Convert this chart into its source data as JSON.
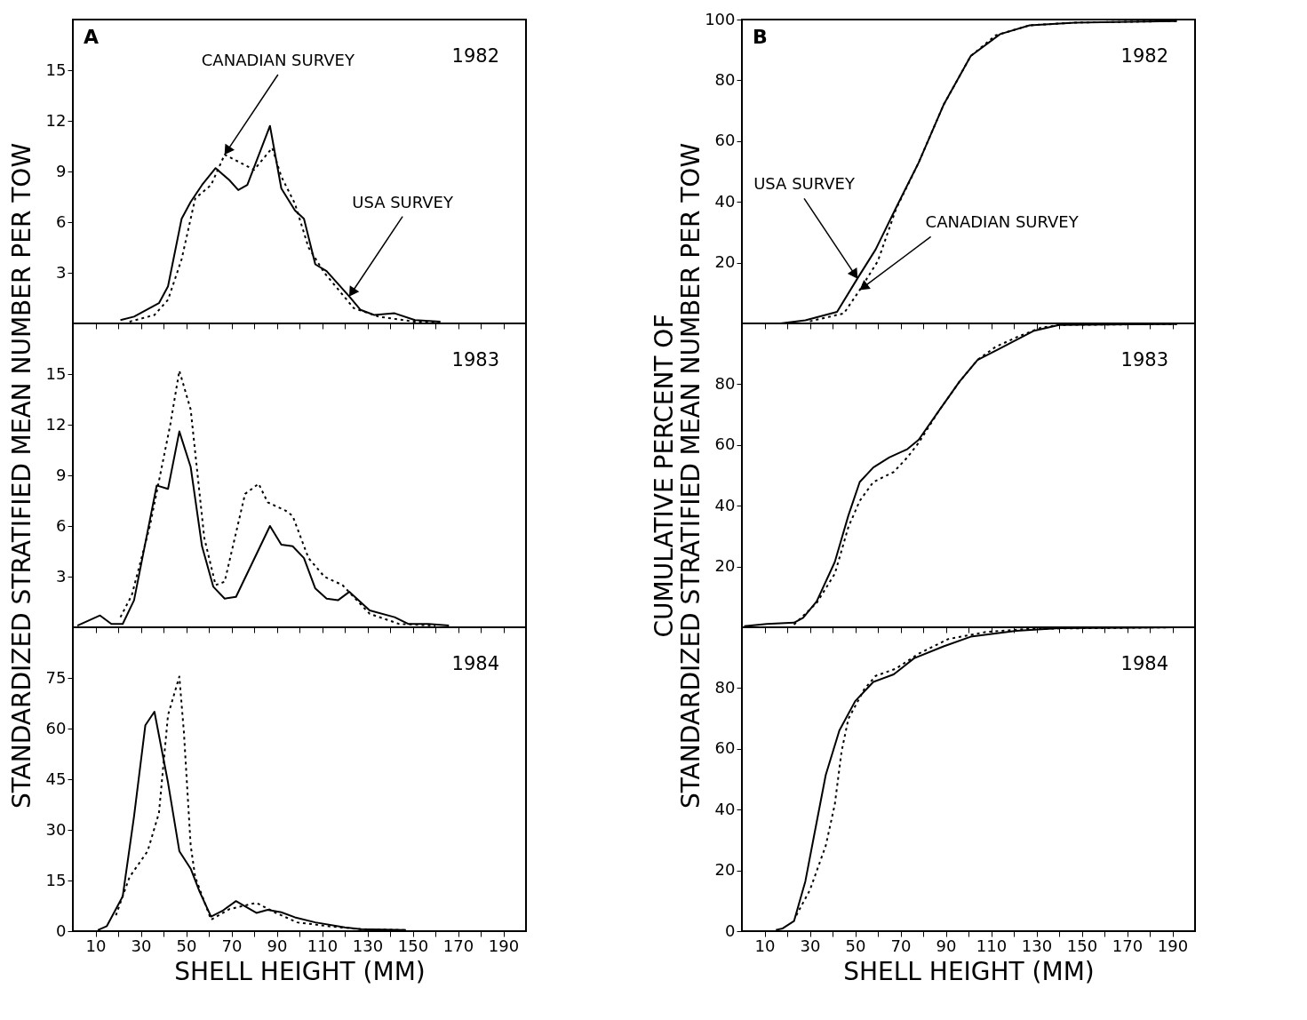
{
  "chart_data": [
    {
      "type": "line",
      "xlim": [
        0,
        200
      ],
      "ylim": [
        0,
        18
      ],
      "yticks": [
        3,
        6,
        9,
        12,
        15
      ],
      "tick_labels": "y",
      "grid": false,
      "xticks": [
        10,
        {
          "value": 20,
          "label": null
        },
        30,
        {
          "value": 40,
          "label": null
        },
        50,
        {
          "value": 60,
          "label": null
        },
        70,
        {
          "value": 80,
          "label": null
        },
        90,
        {
          "value": 100,
          "label": null
        },
        110,
        {
          "value": 120,
          "label": null
        },
        130,
        {
          "value": 140,
          "label": null
        },
        150,
        {
          "value": 160,
          "label": null
        },
        170,
        {
          "value": 180,
          "label": null
        },
        190
      ],
      "series": [
        {
          "color": "#000000",
          "line_style": "solid",
          "x": [
            21,
            27,
            38,
            42,
            48,
            52,
            57,
            63,
            69,
            73,
            77,
            87,
            92,
            98,
            102,
            107,
            112,
            122,
            127,
            133,
            142,
            151,
            162
          ],
          "values": [
            0.2,
            0.4,
            1.2,
            2.2,
            6.2,
            7.2,
            8.2,
            9.2,
            8.5,
            7.9,
            8.2,
            11.7,
            8.0,
            6.7,
            6.2,
            3.5,
            3.1,
            1.6,
            0.8,
            0.5,
            0.6,
            0.2,
            0.1
          ]
        },
        {
          "color": "#000000",
          "line_style": "dotted",
          "x": [
            25,
            36,
            42,
            48,
            54,
            61,
            67,
            80,
            88,
            92,
            98,
            104,
            111,
            124,
            135,
            151,
            163
          ],
          "values": [
            0.1,
            0.5,
            1.4,
            3.8,
            7.4,
            8.2,
            10.0,
            9.1,
            10.4,
            8.7,
            7.1,
            4.5,
            3.0,
            0.9,
            0.4,
            0.1,
            0.1
          ]
        }
      ],
      "annotations": [
        "A",
        "1982",
        {
          "text": "CANADIAN SURVEY",
          "x": 67,
          "y": 10.0
        },
        {
          "text": "USA SURVEY",
          "x": 122,
          "y": 1.6
        }
      ]
    },
    {
      "type": "line",
      "xlim": [
        0,
        200
      ],
      "ylim": [
        0,
        100
      ],
      "yticks": [
        20,
        40,
        60,
        80,
        100
      ],
      "tick_labels": "y",
      "grid": false,
      "xticks": [
        10,
        {
          "value": 20,
          "label": null
        },
        30,
        {
          "value": 40,
          "label": null
        },
        50,
        {
          "value": 60,
          "label": null
        },
        70,
        {
          "value": 80,
          "label": null
        },
        90,
        {
          "value": 100,
          "label": null
        },
        110,
        {
          "value": 120,
          "label": null
        },
        130,
        {
          "value": 140,
          "label": null
        },
        150,
        {
          "value": 160,
          "label": null
        },
        170,
        {
          "value": 180,
          "label": null
        },
        190
      ],
      "series": [
        {
          "color": "#000000",
          "line_style": "solid",
          "x": [
            17,
            28,
            42,
            51,
            59,
            68,
            78,
            89,
            101,
            114,
            127,
            147,
            192
          ],
          "values": [
            0,
            1,
            3.8,
            14.8,
            24.3,
            38,
            52.9,
            71.9,
            88,
            95.2,
            98.1,
            99,
            99.5
          ]
        },
        {
          "color": "#000000",
          "line_style": "dotted",
          "x": [
            30,
            45,
            52,
            60,
            68,
            78,
            89,
            101,
            112,
            127,
            147,
            192
          ],
          "values": [
            0.7,
            3.3,
            11,
            20.5,
            37.6,
            52.9,
            71.9,
            88,
            94.8,
            98.1,
            99,
            99.5
          ]
        }
      ],
      "annotations": [
        "B",
        "1982",
        {
          "text": "USA SURVEY",
          "x": 51,
          "y": 14.8
        },
        {
          "text": "CANADIAN SURVEY",
          "x": 52,
          "y": 11
        }
      ]
    },
    {
      "type": "line",
      "xlim": [
        0,
        200
      ],
      "ylim": [
        0,
        18
      ],
      "yticks": [
        3,
        6,
        9,
        12,
        15
      ],
      "tick_labels": "y",
      "grid": false,
      "ylabel": "STANDARDIZED STRATIFIED MEAN NUMBER PER TOW",
      "xticks": [
        10,
        {
          "value": 20,
          "label": null
        },
        30,
        {
          "value": 40,
          "label": null
        },
        50,
        {
          "value": 60,
          "label": null
        },
        70,
        {
          "value": 80,
          "label": null
        },
        90,
        {
          "value": 100,
          "label": null
        },
        110,
        {
          "value": 120,
          "label": null
        },
        130,
        {
          "value": 140,
          "label": null
        },
        150,
        {
          "value": 160,
          "label": null
        },
        170,
        {
          "value": 180,
          "label": null
        },
        190
      ],
      "series": [
        {
          "color": "#000000",
          "line_style": "solid",
          "x": [
            2,
            12,
            17,
            22,
            27,
            37,
            42,
            47,
            52,
            57,
            62,
            67,
            72,
            87,
            92,
            97,
            102,
            107,
            112,
            117,
            122,
            131,
            142,
            148,
            157,
            166
          ],
          "values": [
            0.1,
            0.7,
            0.2,
            0.2,
            1.6,
            8.4,
            8.2,
            11.6,
            9.5,
            4.8,
            2.4,
            1.7,
            1.8,
            6.0,
            4.9,
            4.8,
            4.1,
            2.3,
            1.7,
            1.6,
            2.1,
            1.0,
            0.6,
            0.2,
            0.2,
            0.1
          ]
        },
        {
          "color": "#000000",
          "line_style": "dotted",
          "x": [
            21,
            26,
            34,
            43,
            47,
            52,
            58,
            63,
            67,
            76,
            82,
            86,
            94,
            97,
            104,
            111,
            119,
            131,
            144,
            160
          ],
          "values": [
            0.6,
            1.9,
            6.0,
            12.0,
            15.2,
            12.9,
            5.3,
            2.5,
            2.7,
            7.9,
            8.5,
            7.4,
            6.9,
            6.6,
            4.1,
            3.0,
            2.5,
            0.8,
            0.2,
            0.1
          ]
        }
      ],
      "annotations": [
        "1983"
      ]
    },
    {
      "type": "line",
      "xlim": [
        0,
        200
      ],
      "ylim": [
        0,
        100
      ],
      "yticks": [
        20,
        40,
        60,
        80
      ],
      "tick_labels": "y",
      "grid": false,
      "ylabel": "CUMULATIVE PERCENT OF\nSTANDARDIZED STRATIFIED MEAN NUMBER PER TOW",
      "xticks": [
        10,
        {
          "value": 20,
          "label": null
        },
        30,
        {
          "value": 40,
          "label": null
        },
        50,
        {
          "value": 60,
          "label": null
        },
        70,
        {
          "value": 80,
          "label": null
        },
        90,
        {
          "value": 100,
          "label": null
        },
        110,
        {
          "value": 120,
          "label": null
        },
        130,
        {
          "value": 140,
          "label": null
        },
        150,
        {
          "value": 160,
          "label": null
        },
        170,
        {
          "value": 180,
          "label": null
        },
        190
      ],
      "series": [
        {
          "color": "#000000",
          "line_style": "solid",
          "x": [
            1,
            11,
            23,
            27,
            33,
            41,
            47,
            52,
            58,
            65,
            73,
            78,
            87,
            96,
            104,
            113,
            129,
            140,
            192
          ],
          "values": [
            0.4,
            1.1,
            1.5,
            3.1,
            8.5,
            21.5,
            36.8,
            47.8,
            52.6,
            55.9,
            58.6,
            61.7,
            71.3,
            80.8,
            88,
            91.4,
            97.6,
            99.5,
            99.8
          ]
        },
        {
          "color": "#000000",
          "line_style": "dotted",
          "x": [
            23,
            33,
            41,
            47,
            52,
            58,
            67,
            73,
            78,
            87,
            96,
            104,
            112,
            122,
            132,
            140,
            192
          ],
          "values": [
            0.9,
            8,
            17.6,
            33,
            41.6,
            47.8,
            51.1,
            55.9,
            60.7,
            71.3,
            80.8,
            88,
            92.3,
            95.7,
            98.6,
            99.5,
            99.8
          ]
        }
      ],
      "annotations": [
        "1983"
      ]
    },
    {
      "type": "line",
      "xlim": [
        0,
        200
      ],
      "ylim": [
        0,
        90
      ],
      "yticks": [
        0,
        15,
        30,
        45,
        60,
        75
      ],
      "grid": false,
      "xlabel": "SHELL HEIGHT (MM)",
      "xticks": [
        10,
        {
          "value": 20,
          "label": null
        },
        30,
        {
          "value": 40,
          "label": null
        },
        50,
        {
          "value": 60,
          "label": null
        },
        70,
        {
          "value": 80,
          "label": null
        },
        90,
        {
          "value": 100,
          "label": null
        },
        110,
        {
          "value": 120,
          "label": null
        },
        130,
        {
          "value": 140,
          "label": null
        },
        150,
        {
          "value": 160,
          "label": null
        },
        170,
        {
          "value": 180,
          "label": null
        },
        190
      ],
      "series": [
        {
          "color": "#000000",
          "line_style": "solid",
          "x": [
            11,
            15,
            22,
            27,
            32,
            36,
            42,
            47,
            52,
            56,
            61,
            66,
            72,
            81,
            86,
            92,
            98,
            107,
            120,
            127,
            147
          ],
          "values": [
            0.3,
            1.5,
            10.3,
            34,
            61,
            65,
            44,
            23.7,
            18.5,
            11.6,
            4.3,
            6.0,
            8.9,
            5.4,
            6.3,
            5.6,
            4.1,
            2.6,
            1.1,
            0.6,
            0.3
          ]
        },
        {
          "color": "#000000",
          "line_style": "dotted",
          "x": [
            19,
            25,
            33,
            38,
            42,
            47,
            49,
            52,
            54,
            61,
            69,
            81,
            89,
            99,
            115,
            127,
            147
          ],
          "values": [
            4.7,
            16,
            23.7,
            35,
            64,
            75.4,
            59,
            25.4,
            16,
            3.4,
            6.5,
            8.4,
            5.6,
            2.6,
            1.3,
            0.6,
            0.3
          ]
        }
      ],
      "annotations": [
        "1984"
      ]
    },
    {
      "type": "line",
      "xlim": [
        0,
        200
      ],
      "ylim": [
        0,
        100
      ],
      "yticks": [
        0,
        20,
        40,
        60,
        80
      ],
      "grid": false,
      "xlabel": "SHELL HEIGHT (MM)",
      "xticks": [
        10,
        {
          "value": 20,
          "label": null
        },
        30,
        {
          "value": 40,
          "label": null
        },
        50,
        {
          "value": 60,
          "label": null
        },
        70,
        {
          "value": 80,
          "label": null
        },
        90,
        {
          "value": 100,
          "label": null
        },
        110,
        {
          "value": 120,
          "label": null
        },
        130,
        {
          "value": 140,
          "label": null
        },
        150,
        {
          "value": 160,
          "label": null
        },
        170,
        {
          "value": 180,
          "label": null
        },
        190
      ],
      "series": [
        {
          "color": "#000000",
          "line_style": "solid",
          "x": [
            15,
            18,
            23,
            28,
            32,
            37,
            43,
            50,
            58,
            67,
            76,
            89,
            101,
            121,
            140,
            192
          ],
          "values": [
            0.4,
            0.9,
            3.3,
            16.4,
            32,
            51.4,
            66,
            75.7,
            82,
            84.5,
            89.8,
            93.7,
            96.9,
            98.8,
            99.7,
            100
          ]
        },
        {
          "color": "#000000",
          "line_style": "dotted",
          "x": [
            24,
            30,
            37,
            41,
            44,
            47,
            54,
            59,
            68,
            78,
            91,
            108,
            127,
            192
          ],
          "values": [
            5.2,
            13.5,
            28.1,
            41.7,
            59.2,
            69.9,
            79.6,
            84,
            86.4,
            91.3,
            96.1,
            98.5,
            99.5,
            100
          ]
        }
      ],
      "annotations": [
        "1984"
      ]
    }
  ]
}
